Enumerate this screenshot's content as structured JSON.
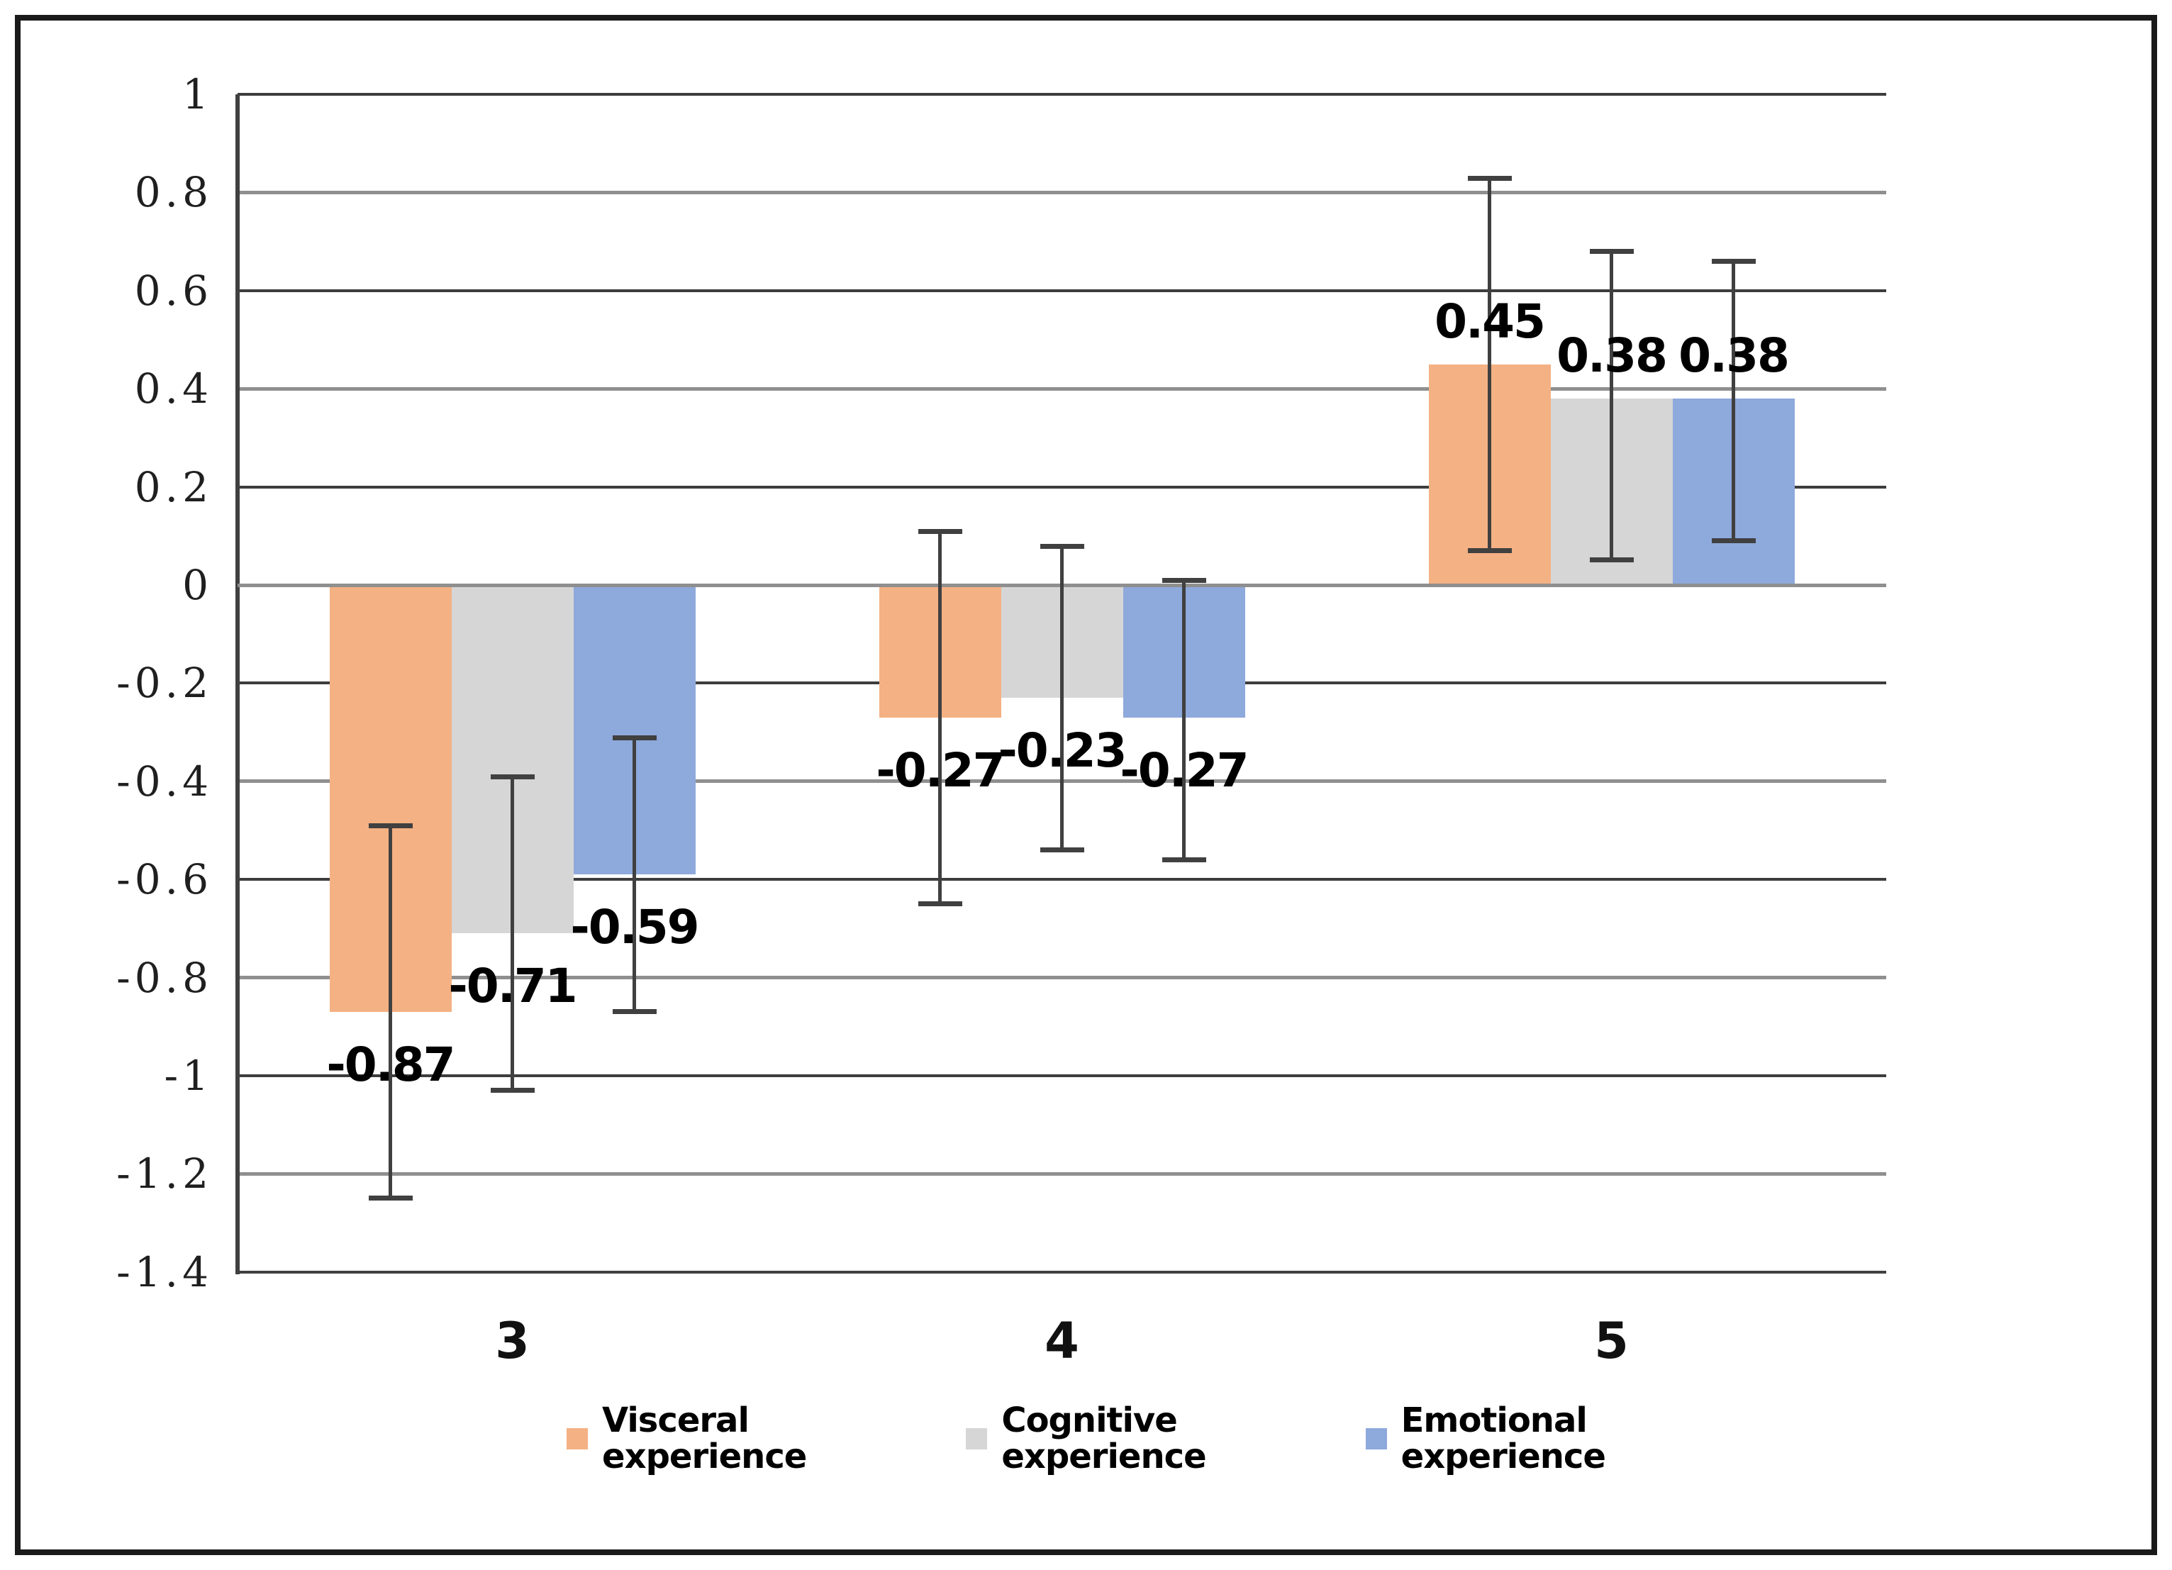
{
  "chart_data": {
    "type": "bar",
    "title": "",
    "categories": [
      "3",
      "4",
      "5"
    ],
    "series": [
      {
        "name": "Visceral experience",
        "legend_label": "Visceral\nexperience",
        "color": "#F4B183",
        "values": [
          -0.87,
          -0.27,
          0.45
        ],
        "labels": [
          "-0.87",
          "-0.27",
          "0.45"
        ],
        "error_low": [
          -1.25,
          -0.65,
          0.07
        ],
        "error_high": [
          -0.49,
          0.11,
          0.83
        ]
      },
      {
        "name": "Cognitive experience",
        "legend_label": "Cognitive\nexperience",
        "color": "#D6D6D6",
        "values": [
          -0.71,
          -0.23,
          0.38
        ],
        "labels": [
          "-0.71",
          "-0.23",
          "0.38"
        ],
        "error_low": [
          -1.03,
          -0.54,
          0.05
        ],
        "error_high": [
          -0.39,
          0.08,
          0.68
        ]
      },
      {
        "name": "Emotional experience",
        "legend_label": "Emotional\nexperience",
        "color": "#8EA9DB",
        "values": [
          -0.59,
          -0.27,
          0.38
        ],
        "labels": [
          "-0.59",
          "-0.27",
          "0.38"
        ],
        "error_low": [
          -0.87,
          -0.56,
          0.09
        ],
        "error_high": [
          -0.31,
          0.01,
          0.66
        ]
      }
    ],
    "y_axis": {
      "min": -1.4,
      "max": 1,
      "step": 0.2,
      "ticks": [
        "1",
        "0.8",
        "0.6",
        "0.4",
        "0.2",
        "0",
        "-0.2",
        "-0.4",
        "-0.6",
        "-0.8",
        "-1",
        "-1.2",
        "-1.4"
      ]
    },
    "grid": true,
    "legend_position": "bottom",
    "colors": {
      "grid_major": "#3d3d3d",
      "grid_minor": "#8f8f8f",
      "axis": "#404040",
      "error_bar": "#404040",
      "zero_line": "#8f8f8f",
      "label_text": "#000000",
      "tick_text": "#1f1f1f"
    }
  }
}
